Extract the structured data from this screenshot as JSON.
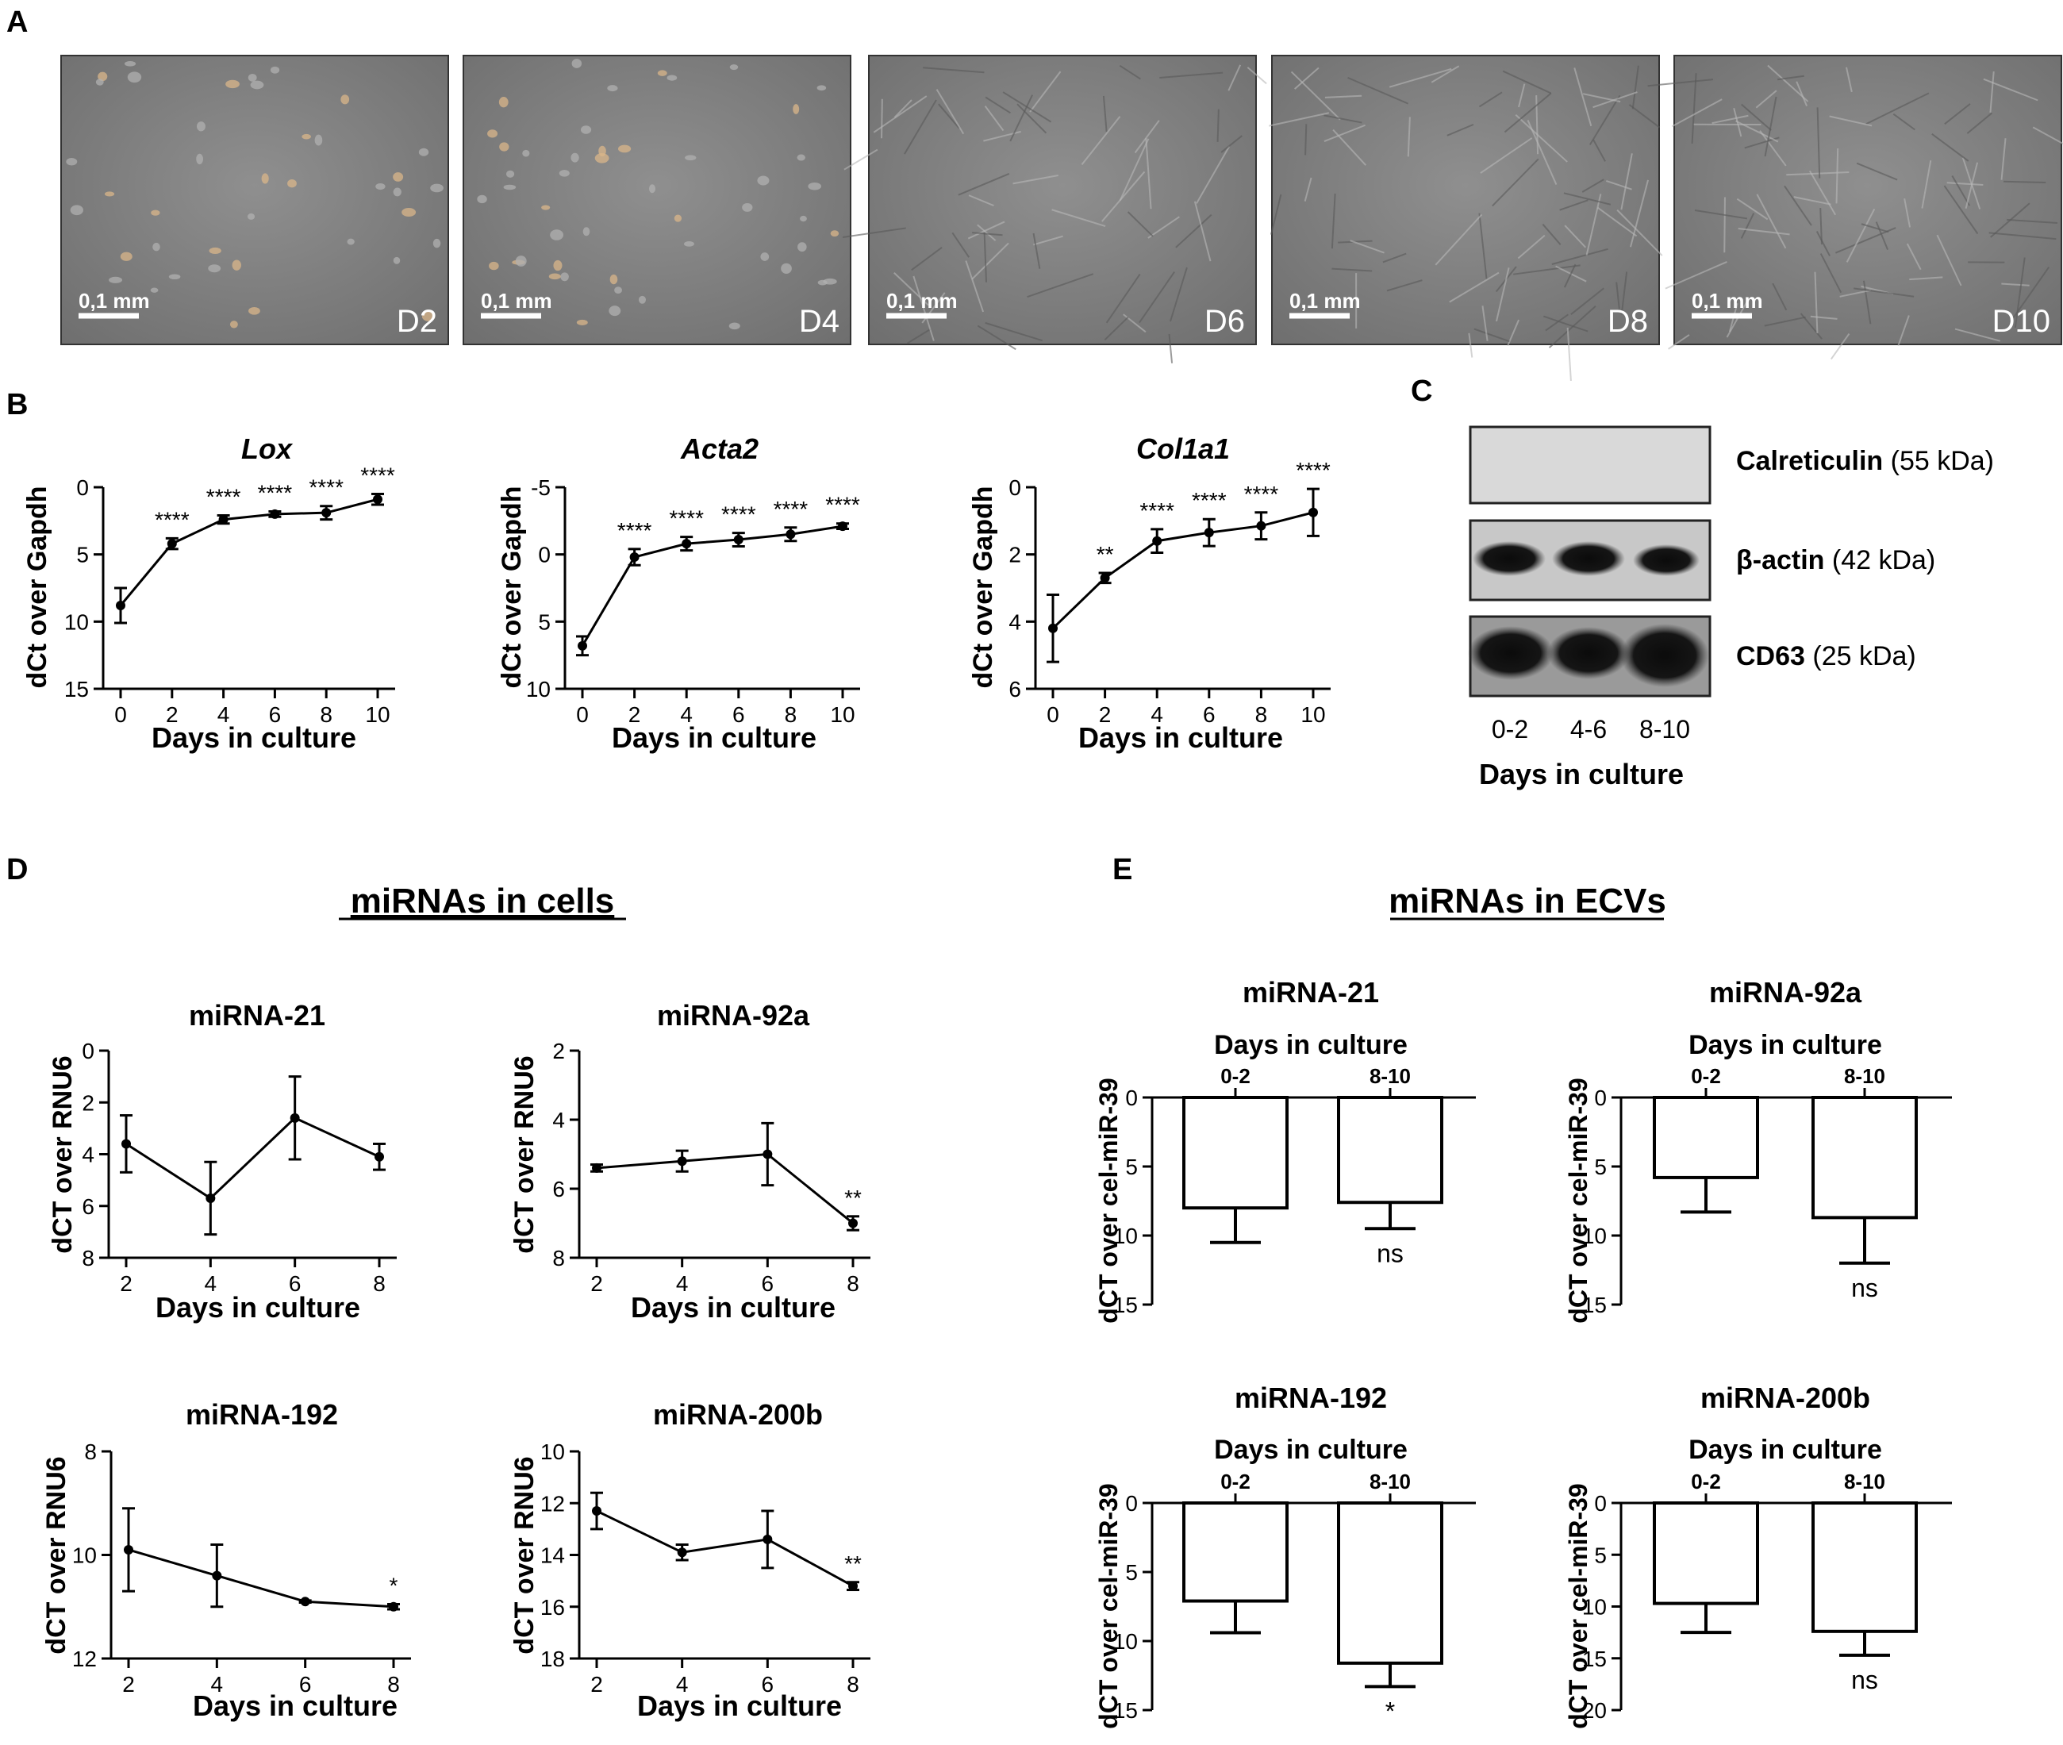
{
  "panel_labels": {
    "A": "A",
    "B": "B",
    "C": "C",
    "D": "D",
    "E": "E"
  },
  "micrographs": [
    {
      "day": "D2",
      "scale": "0,1 mm"
    },
    {
      "day": "D4",
      "scale": "0,1 mm"
    },
    {
      "day": "D6",
      "scale": "0,1 mm"
    },
    {
      "day": "D8",
      "scale": "0,1 mm"
    },
    {
      "day": "D10",
      "scale": "0,1 mm"
    }
  ],
  "western": {
    "bands": [
      {
        "name": "Calreticulin",
        "size": " (55 kDa)"
      },
      {
        "name": "β-actin",
        "size": " (42 kDa)"
      },
      {
        "name": "CD63",
        "size": " (25 kDa)"
      }
    ],
    "lanes": [
      "0-2",
      "4-6",
      "8-10"
    ],
    "xlabel": "Days in culture"
  },
  "section_titles": {
    "D": "miRNAs in cells",
    "E": "miRNAs in ECVs"
  },
  "chart_data": [
    {
      "id": "lox",
      "type": "line",
      "title": "Lox",
      "title_italic": true,
      "xlabel": "Days in culture",
      "ylabel": "dCt over Gapdh",
      "x": [
        0,
        2,
        4,
        6,
        8,
        10
      ],
      "y": [
        8.8,
        4.2,
        2.4,
        2.0,
        1.9,
        0.9
      ],
      "err": [
        1.3,
        0.4,
        0.3,
        0.2,
        0.5,
        0.4
      ],
      "sig": [
        "",
        "****",
        "****",
        "****",
        "****",
        "****"
      ],
      "xticks": [
        0,
        2,
        4,
        6,
        8,
        10
      ],
      "yticks": [
        0,
        5,
        10,
        15
      ],
      "ylim": [
        0,
        15
      ],
      "y_inverted": true
    },
    {
      "id": "acta2",
      "type": "line",
      "title": "Acta2",
      "title_italic": true,
      "xlabel": "Days in culture",
      "ylabel": "dCt over Gapdh",
      "x": [
        0,
        2,
        4,
        6,
        8,
        10
      ],
      "y": [
        6.8,
        0.2,
        -0.8,
        -1.1,
        -1.5,
        -2.1
      ],
      "err": [
        0.7,
        0.6,
        0.5,
        0.5,
        0.5,
        0.2
      ],
      "sig": [
        "",
        "****",
        "****",
        "****",
        "****",
        "****"
      ],
      "xticks": [
        0,
        2,
        4,
        6,
        8,
        10
      ],
      "yticks": [
        -5,
        0,
        5,
        10
      ],
      "ylim": [
        -5,
        10
      ],
      "y_inverted": true
    },
    {
      "id": "col1a1",
      "type": "line",
      "title": "Col1a1",
      "title_italic": true,
      "xlabel": "Days in culture",
      "ylabel": "dCt over Gapdh",
      "x": [
        0,
        2,
        4,
        6,
        8,
        10
      ],
      "y": [
        4.2,
        2.7,
        1.6,
        1.35,
        1.15,
        0.75
      ],
      "err": [
        1.0,
        0.15,
        0.35,
        0.4,
        0.4,
        0.7
      ],
      "sig": [
        "",
        "**",
        "****",
        "****",
        "****",
        "****"
      ],
      "xticks": [
        0,
        2,
        4,
        6,
        8,
        10
      ],
      "yticks": [
        0,
        2,
        4,
        6
      ],
      "ylim": [
        0,
        6
      ],
      "y_inverted": true
    },
    {
      "id": "d_mir21",
      "type": "line",
      "title": "miRNA-21",
      "xlabel": "Days in culture",
      "ylabel": "dCT over RNU6",
      "x": [
        2,
        4,
        6,
        8
      ],
      "y": [
        3.6,
        5.7,
        2.6,
        4.1
      ],
      "err": [
        1.1,
        1.4,
        1.6,
        0.5
      ],
      "sig": [
        "",
        "",
        "",
        ""
      ],
      "xticks": [
        2,
        4,
        6,
        8
      ],
      "yticks": [
        0,
        2,
        4,
        6,
        8
      ],
      "ylim": [
        0,
        8
      ],
      "y_inverted": true
    },
    {
      "id": "d_mir92a",
      "type": "line",
      "title": "miRNA-92a",
      "xlabel": "Days in culture",
      "ylabel": "dCT over RNU6",
      "x": [
        2,
        4,
        6,
        8
      ],
      "y": [
        5.4,
        5.2,
        5.0,
        7.0
      ],
      "err": [
        0.1,
        0.3,
        0.9,
        0.2
      ],
      "sig": [
        "",
        "",
        "",
        "**"
      ],
      "xticks": [
        2,
        4,
        6,
        8
      ],
      "yticks": [
        2,
        4,
        6,
        8
      ],
      "ylim": [
        2,
        8
      ],
      "y_inverted": true
    },
    {
      "id": "d_mir192",
      "type": "line",
      "title": "miRNA-192",
      "xlabel": "Days in culture",
      "ylabel": "dCT over RNU6",
      "x": [
        2,
        4,
        6,
        8
      ],
      "y": [
        9.9,
        10.4,
        10.9,
        11.0
      ],
      "err": [
        0.8,
        0.6,
        0.02,
        0.05
      ],
      "sig": [
        "",
        "",
        "",
        "*"
      ],
      "xticks": [
        2,
        4,
        6,
        8
      ],
      "yticks": [
        8,
        10,
        12
      ],
      "ylim": [
        8,
        12
      ],
      "y_inverted": true
    },
    {
      "id": "d_mir200b",
      "type": "line",
      "title": "miRNA-200b",
      "xlabel": "Days in culture",
      "ylabel": "dCT over RNU6",
      "x": [
        2,
        4,
        6,
        8
      ],
      "y": [
        12.3,
        13.9,
        13.4,
        15.2
      ],
      "err": [
        0.7,
        0.3,
        1.1,
        0.15
      ],
      "sig": [
        "",
        "",
        "",
        "**"
      ],
      "xticks": [
        2,
        4,
        6,
        8
      ],
      "yticks": [
        10,
        12,
        14,
        16,
        18
      ],
      "ylim": [
        10,
        18
      ],
      "y_inverted": true
    },
    {
      "id": "e_mir21",
      "type": "bar",
      "title": "miRNA-21",
      "xlabel": "Days in culture",
      "ylabel": "dCT over cel-miR-39",
      "categories": [
        "0-2",
        "8-10"
      ],
      "values": [
        8.0,
        7.6
      ],
      "err": [
        2.5,
        1.9
      ],
      "sig": [
        "",
        "ns"
      ],
      "yticks": [
        0,
        5,
        10,
        15
      ],
      "ylim": [
        0,
        15
      ],
      "y_inverted": true
    },
    {
      "id": "e_mir92a",
      "type": "bar",
      "title": "miRNA-92a",
      "xlabel": "Days in culture",
      "ylabel": "dCT over cel-miR-39",
      "categories": [
        "0-2",
        "8-10"
      ],
      "values": [
        5.8,
        8.7
      ],
      "err": [
        2.5,
        3.3
      ],
      "sig": [
        "",
        "ns"
      ],
      "yticks": [
        0,
        5,
        10,
        15
      ],
      "ylim": [
        0,
        15
      ],
      "y_inverted": true
    },
    {
      "id": "e_mir192",
      "type": "bar",
      "title": "miRNA-192",
      "xlabel": "Days in culture",
      "ylabel": "dCT over cel-miR-39",
      "categories": [
        "0-2",
        "8-10"
      ],
      "values": [
        7.1,
        11.6
      ],
      "err": [
        2.3,
        1.7
      ],
      "sig": [
        "",
        "*"
      ],
      "yticks": [
        0,
        5,
        10,
        15
      ],
      "ylim": [
        0,
        15
      ],
      "y_inverted": true
    },
    {
      "id": "e_mir200b",
      "type": "bar",
      "title": "miRNA-200b",
      "xlabel": "Days in culture",
      "ylabel": "dCT over cel-miR-39",
      "categories": [
        "0-2",
        "8-10"
      ],
      "values": [
        9.7,
        12.4
      ],
      "err": [
        2.8,
        2.3
      ],
      "sig": [
        "",
        "ns"
      ],
      "yticks": [
        0,
        5,
        10,
        15,
        20
      ],
      "ylim": [
        0,
        20
      ],
      "y_inverted": true
    }
  ]
}
